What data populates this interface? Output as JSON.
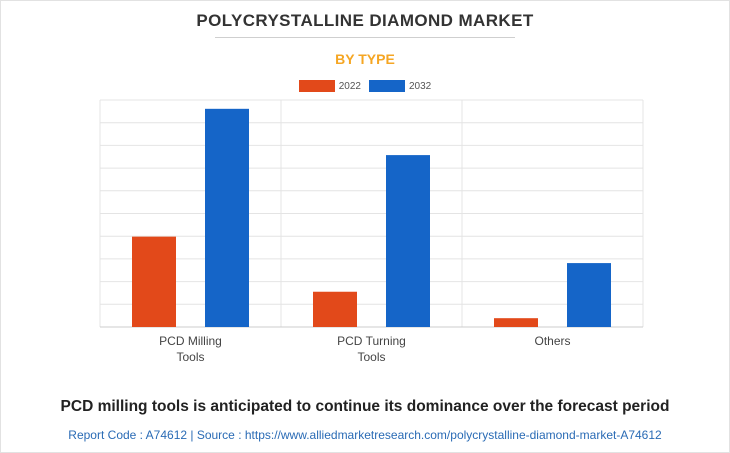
{
  "header": {
    "title": "POLYCRYSTALLINE DIAMOND MARKET",
    "subtitle": "BY TYPE"
  },
  "colors": {
    "series_2022": "#e2491a",
    "series_2032": "#1565c8",
    "grid": "#e4e4e4",
    "accent": "#f5a623"
  },
  "chart_data": {
    "type": "bar",
    "categories": [
      [
        "PCD Milling",
        "Tools"
      ],
      [
        "PCD Turning",
        "Tools"
      ],
      [
        "Others"
      ]
    ],
    "series": [
      {
        "name": "2022",
        "values": [
          41,
          16,
          4
        ]
      },
      {
        "name": "2032",
        "values": [
          99,
          78,
          29
        ]
      }
    ],
    "ylim": [
      0,
      103
    ],
    "grid": true,
    "legend": "top-center",
    "xlabel": "",
    "ylabel": ""
  },
  "footer": {
    "caption": "PCD milling tools is anticipated to continue its dominance over the forecast period",
    "source": "Report Code : A74612  |  Source : https://www.alliedmarketresearch.com/polycrystalline-diamond-market-A74612"
  }
}
